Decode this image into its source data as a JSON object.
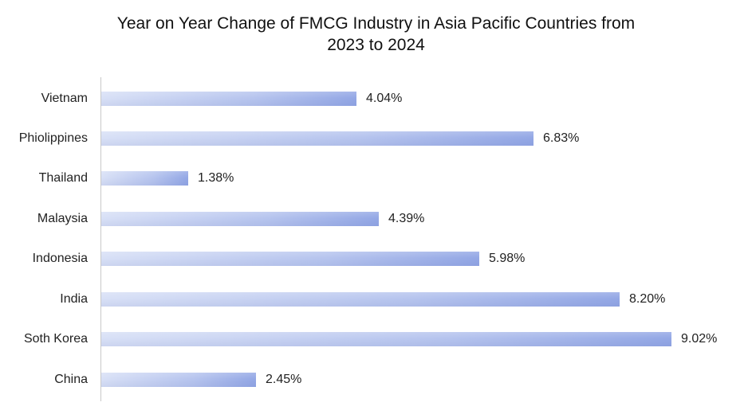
{
  "chart_data": {
    "type": "bar",
    "orientation": "horizontal",
    "title": "Year on Year Change of FMCG Industry in Asia Pacific Countries from 2023 to 2024",
    "title_lines": [
      "Year on Year Change of FMCG Industry in Asia Pacific Countries from",
      "2023 to 2024"
    ],
    "categories": [
      "Vietnam",
      "Phiolippines",
      "Thailand",
      "Malaysia",
      "Indonesia",
      "India",
      "Soth Korea",
      "China"
    ],
    "values": [
      4.04,
      6.83,
      1.38,
      4.39,
      5.98,
      8.2,
      9.02,
      2.45
    ],
    "labels": [
      "4.04%",
      "6.83%",
      "1.38%",
      "4.39%",
      "5.98%",
      "8.20%",
      "9.02%",
      "2.45%"
    ],
    "xlabel": "",
    "ylabel": "",
    "unit": "%",
    "grid": false,
    "legend": null,
    "bar_color_start": "#d8e0f6",
    "bar_color_end": "#93a7e5"
  }
}
